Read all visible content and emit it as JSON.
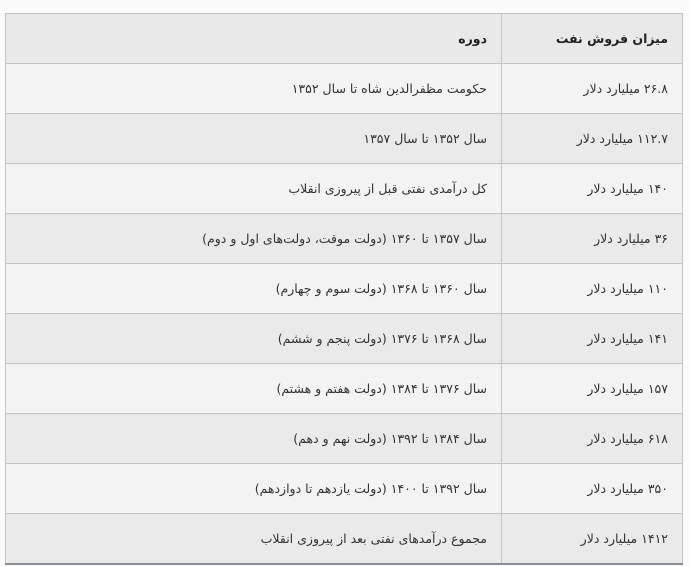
{
  "table": {
    "headers": [
      "میزان فروش نفت",
      "دوره"
    ],
    "rows": [
      {
        "amount": "۲۶.۸ میلیارد دلار",
        "period": "حکومت مظفرالدین شاه تا سال ۱۳۵۲"
      },
      {
        "amount": "۱۱۲.۷ میلیارد دلار",
        "period": "سال ۱۳۵۲ تا سال ۱۳۵۷"
      },
      {
        "amount": "۱۴۰ میلیارد دلار",
        "period": "کل درآمدی نفتی قبل از پیروزی انقلاب"
      },
      {
        "amount": "۳۶ میلیارد دلار",
        "period": "سال ۱۳۵۷ تا ۱۳۶۰ (دولت موقت، دولت‌های اول و دوم)"
      },
      {
        "amount": "۱۱۰ میلیارد دلار",
        "period": "سال ۱۳۶۰ تا ۱۳۶۸ (دولت سوم و چهارم)"
      },
      {
        "amount": "۱۴۱ میلیارد دلار",
        "period": "سال ۱۳۶۸ تا ۱۳۷۶ (دولت پنجم و ششم)"
      },
      {
        "amount": "۱۵۷ میلیارد دلار",
        "period": "سال ۱۳۷۶ تا ۱۳۸۴ (دولت هفتم و هشتم)"
      },
      {
        "amount": "۶۱۸ میلیارد دلار",
        "period": "سال ۱۳۸۴ تا ۱۳۹۲ (دولت نهم و دهم)"
      },
      {
        "amount": "۳۵۰ میلیارد دلار",
        "period": "سال ۱۳۹۲ تا ۱۴۰۰ (دولت یازدهم تا دوازدهم)"
      },
      {
        "amount": "۱۴۱۲ میلیارد دلار",
        "period": "مجموع درآمدهای نفتی بعد از پیروزی انقلاب"
      }
    ]
  }
}
